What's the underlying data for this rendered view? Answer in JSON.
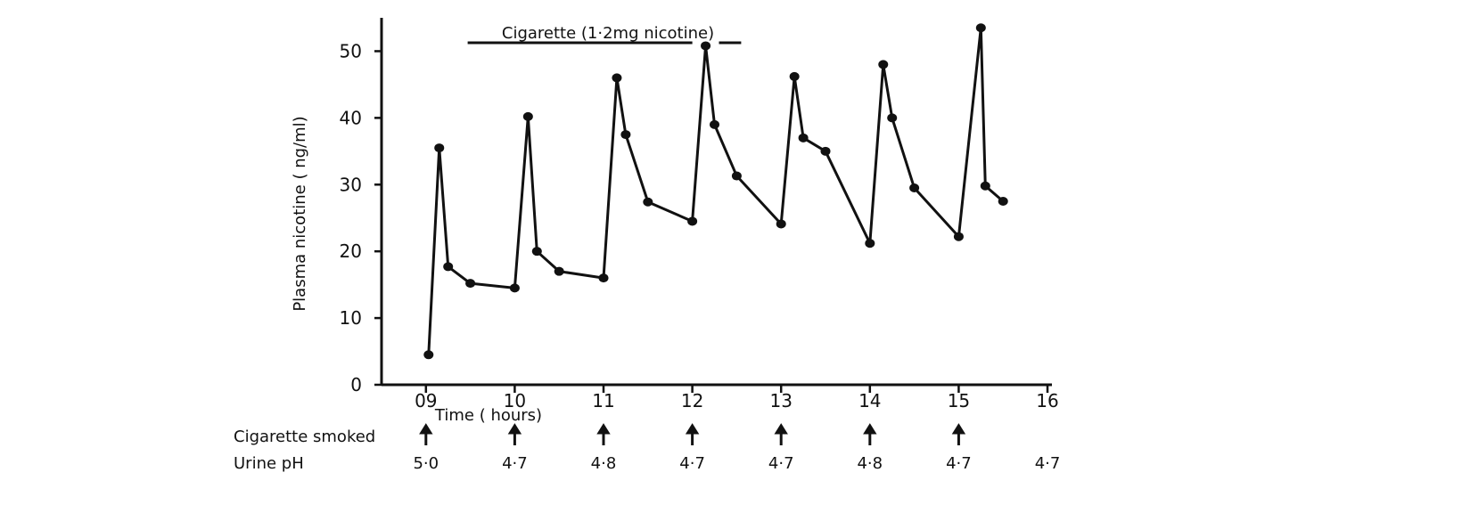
{
  "chart_data": {
    "type": "line",
    "ylabel": "Plasma nicotine ( ng/ml)",
    "xlabel": "Time ( hours)",
    "x_ticks": [
      9,
      10,
      11,
      12,
      13,
      14,
      15,
      16
    ],
    "x_tick_labels": [
      "09",
      "10",
      "11",
      "12",
      "13",
      "14",
      "15",
      "16"
    ],
    "y_ticks": [
      0,
      10,
      20,
      30,
      40,
      50
    ],
    "y_tick_labels": [
      "0",
      "10",
      "20",
      "30",
      "40",
      "50"
    ],
    "xlim": [
      8.5,
      16.05
    ],
    "ylim": [
      0,
      55
    ],
    "annotation": {
      "text": "Cigarette (1·2mg nicotine)",
      "x_start": 9.5,
      "x_end": 12.55
    },
    "series": [
      {
        "x": [
          9.03,
          9.15,
          9.25,
          9.5,
          10.0,
          10.15,
          10.25,
          10.5,
          11.0,
          11.15,
          11.25,
          11.5,
          12.0,
          12.15,
          12.25,
          12.5,
          13.0,
          13.15,
          13.25,
          13.5,
          14.0,
          14.15,
          14.25,
          14.5,
          15.0,
          15.25,
          15.3,
          15.5
        ],
        "y": [
          4.5,
          35.5,
          17.7,
          15.2,
          14.5,
          40.2,
          20.0,
          17.0,
          16.0,
          46.0,
          37.5,
          27.4,
          24.5,
          50.8,
          39.0,
          31.3,
          24.1,
          46.2,
          37.0,
          35.0,
          21.2,
          48.0,
          40.0,
          29.5,
          22.2,
          53.5,
          29.8,
          27.5
        ]
      }
    ]
  },
  "rows": {
    "smoked_label": "Cigarette smoked",
    "smoked_at": [
      9,
      10,
      11,
      12,
      13,
      14,
      15
    ],
    "ph_label": "Urine pH",
    "ph_values": [
      {
        "x": 9,
        "text": "5·0"
      },
      {
        "x": 10,
        "text": "4·7"
      },
      {
        "x": 11,
        "text": "4·8"
      },
      {
        "x": 12,
        "text": "4·7"
      },
      {
        "x": 13,
        "text": "4·7"
      },
      {
        "x": 14,
        "text": "4·8"
      },
      {
        "x": 15,
        "text": "4·7"
      },
      {
        "x": 16,
        "text": "4·7"
      }
    ]
  }
}
